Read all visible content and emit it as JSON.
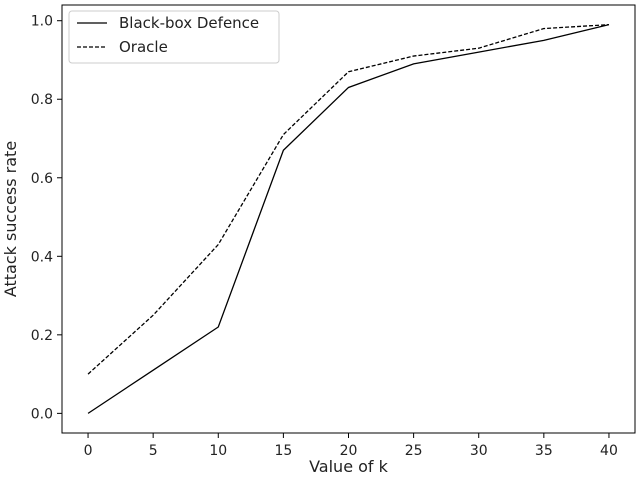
{
  "chart_data": {
    "type": "line",
    "x": [
      0,
      5,
      10,
      15,
      20,
      25,
      30,
      35,
      40
    ],
    "series": [
      {
        "name": "Black-box Defence",
        "style": "solid",
        "color": "#000000",
        "values": [
          0.0,
          0.11,
          0.22,
          0.67,
          0.83,
          0.89,
          0.92,
          0.95,
          0.99
        ]
      },
      {
        "name": "Oracle",
        "style": "dashed",
        "color": "#000000",
        "values": [
          0.1,
          0.25,
          0.43,
          0.71,
          0.87,
          0.91,
          0.93,
          0.98,
          0.99
        ]
      }
    ],
    "title": "",
    "xlabel": "Value of k",
    "ylabel": "Attack success rate",
    "xlim": [
      -2,
      42
    ],
    "ylim": [
      -0.05,
      1.04
    ],
    "xticks": [
      0,
      5,
      10,
      15,
      20,
      25,
      30,
      35,
      40
    ],
    "xtick_labels": [
      "0",
      "5",
      "10",
      "15",
      "20",
      "25",
      "30",
      "35",
      "40"
    ],
    "yticks": [
      0.0,
      0.2,
      0.4,
      0.6,
      0.8,
      1.0
    ],
    "ytick_labels": [
      "0.0",
      "0.2",
      "0.4",
      "0.6",
      "0.8",
      "1.0"
    ],
    "grid": false,
    "legend_position": "top-left"
  }
}
